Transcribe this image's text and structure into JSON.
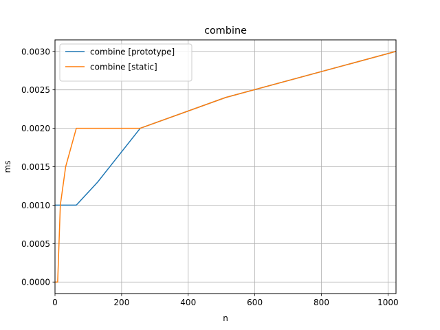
{
  "chart_data": {
    "type": "line",
    "title": "combine",
    "xlabel": "n",
    "ylabel": "ms",
    "xlim": [
      0,
      1024
    ],
    "ylim": [
      -0.00015,
      0.00315
    ],
    "xticks": [
      0,
      200,
      400,
      600,
      800,
      1000
    ],
    "xtick_labels": [
      "0",
      "200",
      "400",
      "600",
      "800",
      "1000"
    ],
    "yticks": [
      0.0,
      0.0005,
      0.001,
      0.0015,
      0.002,
      0.0025,
      0.003
    ],
    "ytick_labels": [
      "0.0000",
      "0.0005",
      "0.0010",
      "0.0015",
      "0.0020",
      "0.0025",
      "0.0030"
    ],
    "grid": true,
    "legend_position": "top-left",
    "series": [
      {
        "name": "combine [prototype]",
        "color": "#1f77b4",
        "x": [
          1,
          2,
          4,
          8,
          16,
          32,
          64,
          128,
          256,
          512,
          1024
        ],
        "y": [
          0.001,
          0.001,
          0.001,
          0.001,
          0.001,
          0.001,
          0.001,
          0.0013,
          0.002,
          0.0024,
          0.003
        ]
      },
      {
        "name": "combine [static]",
        "color": "#ff7f0e",
        "x": [
          1,
          2,
          4,
          8,
          16,
          32,
          64,
          128,
          256,
          512,
          1024
        ],
        "y": [
          0.0,
          0.0,
          0.0,
          0.0,
          0.001,
          0.0015,
          0.002,
          0.002,
          0.002,
          0.0024,
          0.003
        ]
      }
    ]
  }
}
